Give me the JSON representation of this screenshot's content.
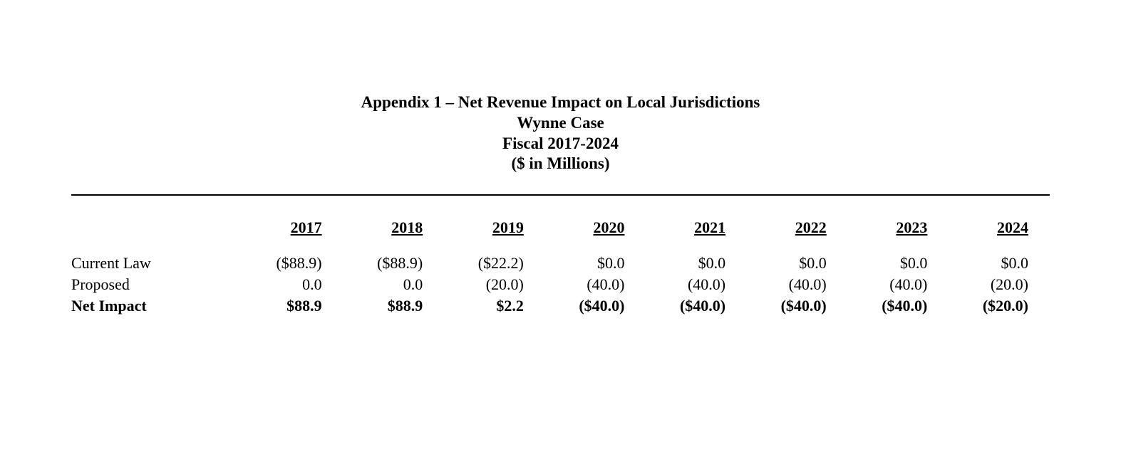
{
  "title": {
    "line1": "Appendix 1 – Net Revenue Impact on Local Jurisdictions",
    "line2": "Wynne Case",
    "line3": "Fiscal 2017-2024",
    "line4": "($ in Millions)"
  },
  "table": {
    "type": "table",
    "background_color": "#ffffff",
    "text_color": "#000000",
    "rule_color": "#000000",
    "font_family": "Times New Roman",
    "title_fontsize": 23,
    "body_fontsize": 22,
    "columns": [
      "2017",
      "2018",
      "2019",
      "2020",
      "2021",
      "2022",
      "2023",
      "2024"
    ],
    "rows": [
      {
        "label": "Current Law",
        "bold": false,
        "cells": [
          "($88.9)",
          "($88.9)",
          "($22.2)",
          "$0.0",
          "$0.0",
          "$0.0",
          "$0.0",
          "$0.0"
        ]
      },
      {
        "label": "Proposed",
        "bold": false,
        "cells": [
          "0.0",
          "0.0",
          "(20.0)",
          "(40.0)",
          "(40.0)",
          "(40.0)",
          "(40.0)",
          "(20.0)"
        ]
      },
      {
        "label": "Net Impact",
        "bold": true,
        "cells": [
          "$88.9",
          "$88.9",
          "$2.2",
          "($40.0)",
          "($40.0)",
          "($40.0)",
          "($40.0)",
          "($20.0)"
        ]
      }
    ]
  }
}
